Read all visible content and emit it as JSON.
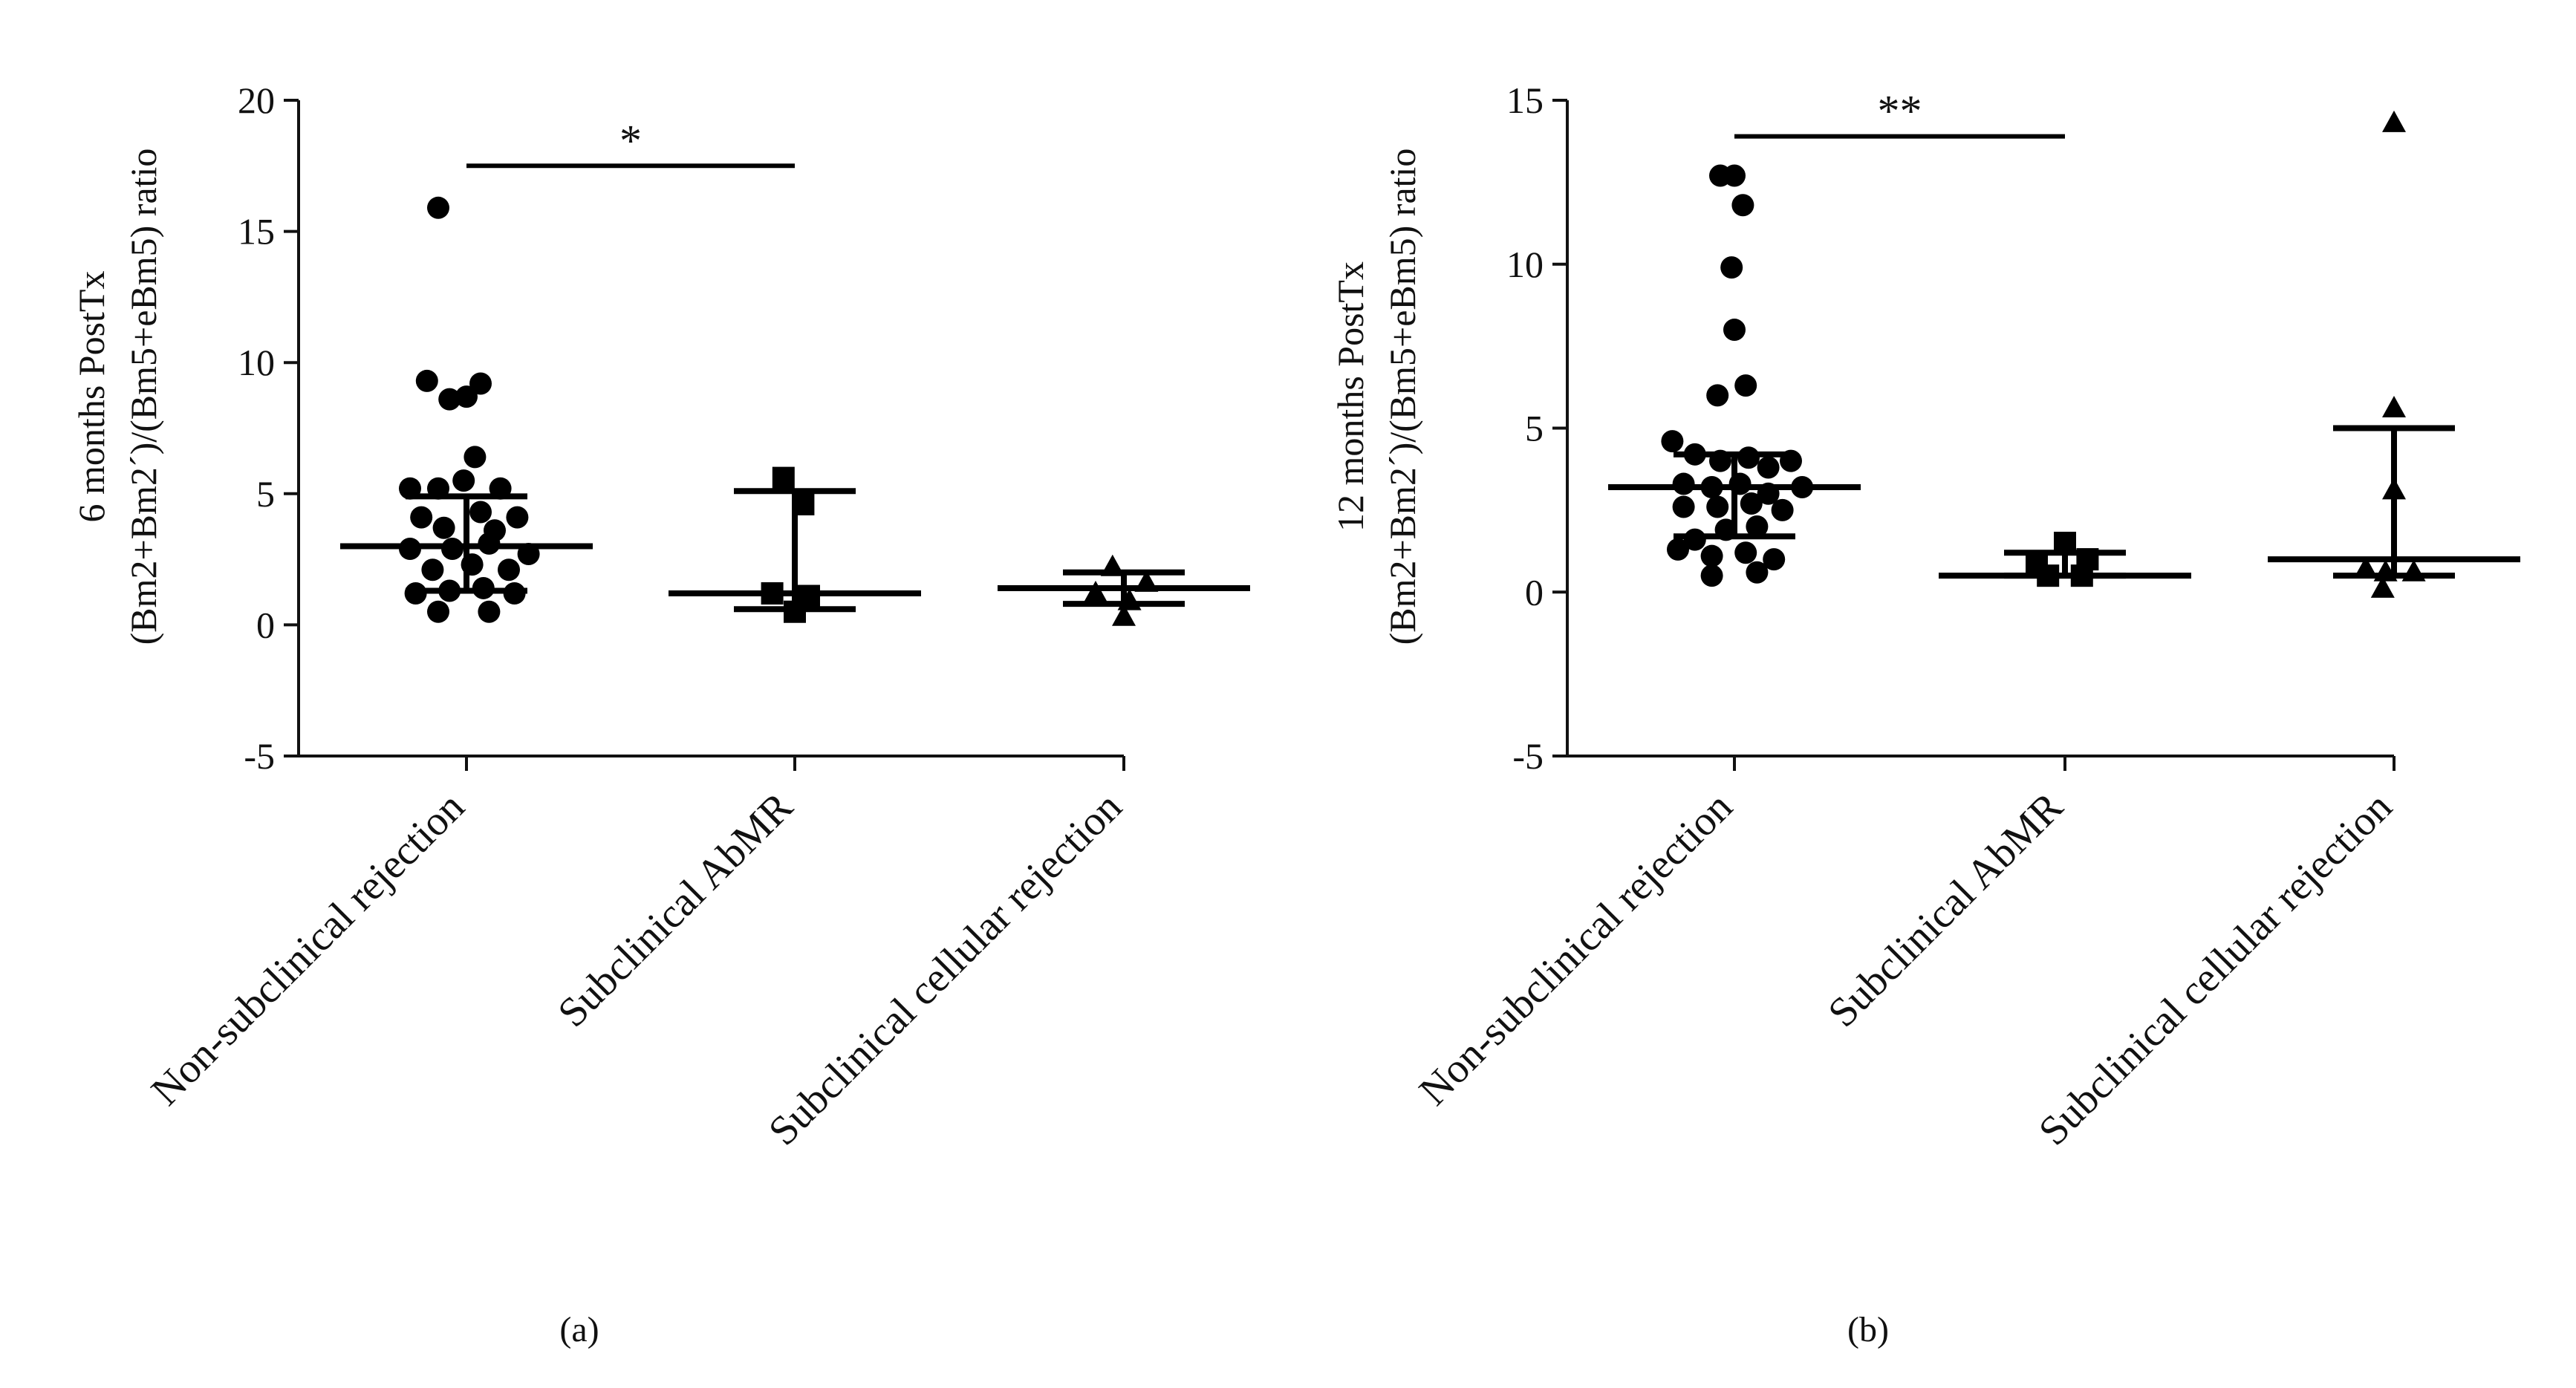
{
  "chart_data": [
    {
      "type": "scatter",
      "panel_label": "(a)",
      "ylabel_line1": "6 months PostTx",
      "ylabel_line2": "(Bm2+Bm2´)/(Bm5+eBm5) ratio",
      "ylim": [
        -5,
        20
      ],
      "yticks": [
        -5,
        0,
        5,
        10,
        15,
        20
      ],
      "categories": [
        "Non-subclinical rejection",
        "Subclinical AbMR",
        "Subclinical cellular rejection"
      ],
      "significance": [
        {
          "from": 0,
          "to": 1,
          "label": "*",
          "y": 17.5
        }
      ],
      "groups": [
        {
          "name": "Non-subclinical rejection",
          "marker": "circle",
          "median": 3.0,
          "q1": 1.3,
          "q3": 4.9,
          "points": [
            {
              "dx": -0.1,
              "y": 15.9
            },
            {
              "dx": -0.14,
              "y": 9.3
            },
            {
              "dx": 0.05,
              "y": 9.2
            },
            {
              "dx": 0.0,
              "y": 8.7
            },
            {
              "dx": -0.06,
              "y": 8.6
            },
            {
              "dx": 0.03,
              "y": 6.4
            },
            {
              "dx": -0.2,
              "y": 5.2
            },
            {
              "dx": -0.1,
              "y": 5.2
            },
            {
              "dx": -0.01,
              "y": 5.5
            },
            {
              "dx": 0.12,
              "y": 5.2
            },
            {
              "dx": -0.16,
              "y": 4.1
            },
            {
              "dx": 0.05,
              "y": 4.3
            },
            {
              "dx": 0.18,
              "y": 4.1
            },
            {
              "dx": -0.08,
              "y": 3.7
            },
            {
              "dx": 0.1,
              "y": 3.6
            },
            {
              "dx": -0.2,
              "y": 2.9
            },
            {
              "dx": -0.05,
              "y": 2.9
            },
            {
              "dx": 0.08,
              "y": 3.1
            },
            {
              "dx": 0.22,
              "y": 2.7
            },
            {
              "dx": -0.12,
              "y": 2.1
            },
            {
              "dx": 0.02,
              "y": 2.3
            },
            {
              "dx": 0.15,
              "y": 2.1
            },
            {
              "dx": -0.18,
              "y": 1.2
            },
            {
              "dx": -0.06,
              "y": 1.3
            },
            {
              "dx": 0.06,
              "y": 1.4
            },
            {
              "dx": 0.17,
              "y": 1.2
            },
            {
              "dx": -0.1,
              "y": 0.5
            },
            {
              "dx": 0.08,
              "y": 0.5
            }
          ]
        },
        {
          "name": "Subclinical AbMR",
          "marker": "square",
          "median": 1.2,
          "q1": 0.6,
          "q3": 5.1,
          "points": [
            {
              "dx": -0.04,
              "y": 5.6
            },
            {
              "dx": 0.03,
              "y": 4.6
            },
            {
              "dx": -0.08,
              "y": 1.2
            },
            {
              "dx": 0.05,
              "y": 1.1
            },
            {
              "dx": 0.0,
              "y": 0.5
            }
          ]
        },
        {
          "name": "Subclinical cellular rejection",
          "marker": "triangle",
          "median": 1.4,
          "q1": 0.8,
          "q3": 2.0,
          "points": [
            {
              "dx": -0.04,
              "y": 2.2
            },
            {
              "dx": 0.08,
              "y": 1.6
            },
            {
              "dx": -0.1,
              "y": 1.2
            },
            {
              "dx": 0.02,
              "y": 0.9
            },
            {
              "dx": 0.0,
              "y": 0.3
            }
          ]
        }
      ]
    },
    {
      "type": "scatter",
      "panel_label": "(b)",
      "ylabel_line1": "12 months PostTx",
      "ylabel_line2": "(Bm2+Bm2´)/(Bm5+eBm5) ratio",
      "ylim": [
        -5,
        15
      ],
      "yticks": [
        -5,
        0,
        5,
        10,
        15
      ],
      "categories": [
        "Non-subclinical rejection",
        "Subclinical AbMR",
        "Subclinical cellular rejection"
      ],
      "significance": [
        {
          "from": 0,
          "to": 1,
          "label": "**",
          "y": 13.9
        }
      ],
      "groups": [
        {
          "name": "Non-subclinical rejection",
          "marker": "circle",
          "median": 3.2,
          "q1": 1.7,
          "q3": 4.2,
          "points": [
            {
              "dx": -0.05,
              "y": 12.7
            },
            {
              "dx": 0.0,
              "y": 12.7
            },
            {
              "dx": 0.03,
              "y": 11.8
            },
            {
              "dx": -0.01,
              "y": 9.9
            },
            {
              "dx": 0.0,
              "y": 8.0
            },
            {
              "dx": -0.06,
              "y": 6.0
            },
            {
              "dx": 0.04,
              "y": 6.3
            },
            {
              "dx": -0.22,
              "y": 4.6
            },
            {
              "dx": -0.14,
              "y": 4.2
            },
            {
              "dx": -0.05,
              "y": 4.0
            },
            {
              "dx": 0.05,
              "y": 4.1
            },
            {
              "dx": 0.12,
              "y": 3.8
            },
            {
              "dx": 0.2,
              "y": 4.0
            },
            {
              "dx": -0.18,
              "y": 3.3
            },
            {
              "dx": -0.08,
              "y": 3.2
            },
            {
              "dx": 0.02,
              "y": 3.3
            },
            {
              "dx": 0.12,
              "y": 3.0
            },
            {
              "dx": 0.24,
              "y": 3.2
            },
            {
              "dx": -0.18,
              "y": 2.6
            },
            {
              "dx": -0.06,
              "y": 2.6
            },
            {
              "dx": 0.06,
              "y": 2.7
            },
            {
              "dx": 0.17,
              "y": 2.5
            },
            {
              "dx": -0.14,
              "y": 1.6
            },
            {
              "dx": -0.03,
              "y": 1.9
            },
            {
              "dx": 0.08,
              "y": 2.0
            },
            {
              "dx": -0.2,
              "y": 1.3
            },
            {
              "dx": -0.08,
              "y": 1.1
            },
            {
              "dx": 0.04,
              "y": 1.2
            },
            {
              "dx": 0.14,
              "y": 1.0
            },
            {
              "dx": -0.08,
              "y": 0.5
            },
            {
              "dx": 0.08,
              "y": 0.6
            }
          ]
        },
        {
          "name": "Subclinical AbMR",
          "marker": "square",
          "median": 0.5,
          "q1": 0.5,
          "q3": 1.2,
          "points": [
            {
              "dx": 0.0,
              "y": 1.5
            },
            {
              "dx": -0.1,
              "y": 0.9
            },
            {
              "dx": 0.08,
              "y": 1.0
            },
            {
              "dx": -0.06,
              "y": 0.5
            },
            {
              "dx": 0.06,
              "y": 0.5
            }
          ]
        },
        {
          "name": "Subclinical cellular rejection",
          "marker": "triangle",
          "median": 1.0,
          "q1": 0.5,
          "q3": 5.0,
          "points": [
            {
              "dx": 0.0,
              "y": 14.3
            },
            {
              "dx": 0.0,
              "y": 5.6
            },
            {
              "dx": 0.0,
              "y": 3.1
            },
            {
              "dx": -0.1,
              "y": 0.7
            },
            {
              "dx": 0.07,
              "y": 0.6
            },
            {
              "dx": -0.03,
              "y": 0.6
            },
            {
              "dx": -0.04,
              "y": 0.1
            }
          ]
        }
      ]
    }
  ]
}
